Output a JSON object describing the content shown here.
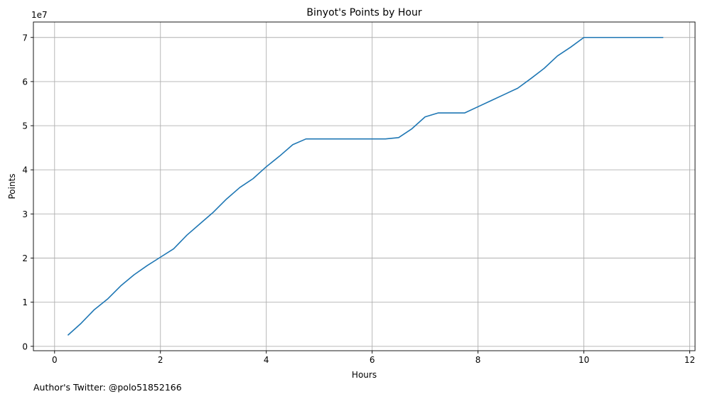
{
  "footer": {
    "note": "Author's Twitter: @polo51852166"
  },
  "chart_data": {
    "type": "line",
    "title": "Binyot's Points by Hour",
    "xlabel": "Hours",
    "ylabel": "Points",
    "y_offset_label": "1e7",
    "xlim": [
      -0.4,
      12.1
    ],
    "ylim": [
      -0.1,
      7.35
    ],
    "y_scale_factor": 10000000,
    "xticks": [
      0,
      2,
      4,
      6,
      8,
      10,
      12
    ],
    "xtick_labels": [
      "0",
      "2",
      "4",
      "6",
      "8",
      "10",
      "12"
    ],
    "yticks": [
      0,
      1,
      2,
      3,
      4,
      5,
      6,
      7
    ],
    "ytick_labels": [
      "0",
      "1",
      "2",
      "3",
      "4",
      "5",
      "6",
      "7"
    ],
    "grid": true,
    "line_color": "#1f77b4",
    "series": [
      {
        "x": [
          0.25,
          0.5,
          0.75,
          1.0,
          1.25,
          1.5,
          1.75,
          2.0,
          2.25,
          2.5,
          2.75,
          3.0,
          3.25,
          3.5,
          3.75,
          4.0,
          4.25,
          4.5,
          4.75,
          5.0,
          5.25,
          5.5,
          5.75,
          6.0,
          6.25,
          6.5,
          6.75,
          7.0,
          7.25,
          7.5,
          7.75,
          8.0,
          8.25,
          8.5,
          8.75,
          9.0,
          9.25,
          9.5,
          9.75,
          10.0,
          10.25,
          10.5,
          10.75,
          11.0,
          11.25,
          11.5
        ],
        "y": [
          0.25,
          0.52,
          0.83,
          1.07,
          1.37,
          1.62,
          1.83,
          2.02,
          2.21,
          2.52,
          2.78,
          3.04,
          3.34,
          3.6,
          3.8,
          4.07,
          4.31,
          4.57,
          4.7,
          4.7,
          4.7,
          4.7,
          4.7,
          4.7,
          4.7,
          4.73,
          4.93,
          5.2,
          5.29,
          5.29,
          5.29,
          5.43,
          5.57,
          5.71,
          5.85,
          6.07,
          6.3,
          6.58,
          6.78,
          7.0,
          7.0,
          7.0,
          7.0,
          7.0,
          7.0,
          7.0
        ]
      }
    ]
  }
}
